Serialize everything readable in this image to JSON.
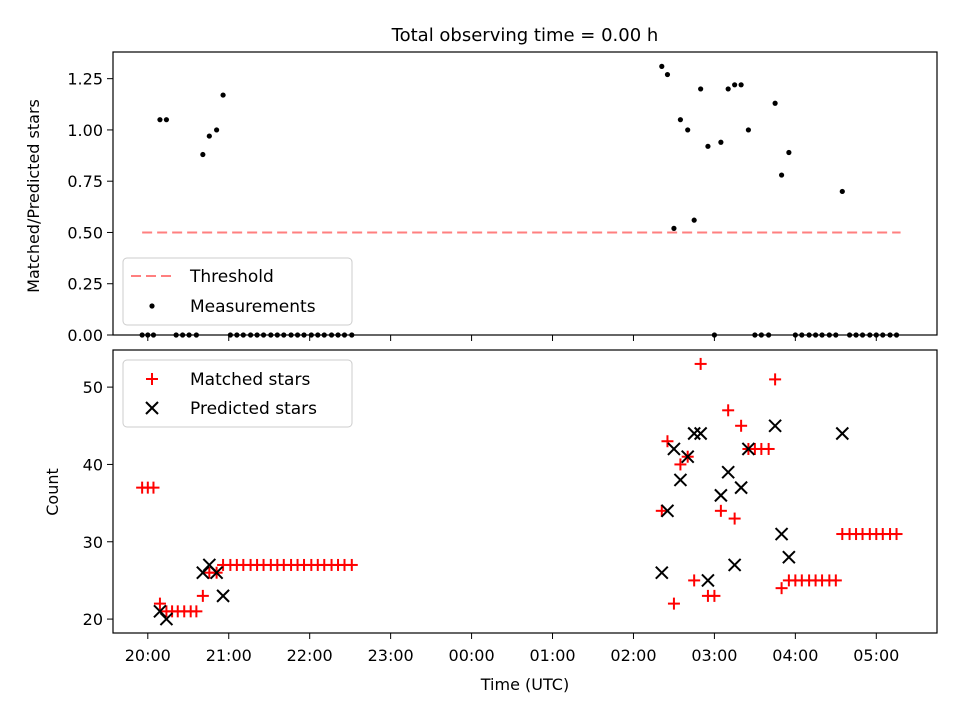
{
  "chart_data": [
    {
      "type": "scatter",
      "title": "Total observing time = 0.00 h",
      "ylabel": "Matched/Predicted stars",
      "xlabel": "",
      "ylim": [
        0,
        1.38
      ],
      "yticks": [
        "0.00",
        "0.25",
        "0.50",
        "0.75",
        "1.00",
        "1.25"
      ],
      "ytick_values": [
        0,
        0.25,
        0.5,
        0.75,
        1.0,
        1.25
      ],
      "legend_loc": "lower-left",
      "threshold": {
        "name": "Threshold",
        "value": 0.5,
        "color": "#ff7f7f",
        "x_range": [
          19.93,
          29.3
        ]
      },
      "series": [
        {
          "name": "Measurements",
          "color": "#000000",
          "points": [
            [
              19.93,
              0
            ],
            [
              20.0,
              0
            ],
            [
              20.07,
              0
            ],
            [
              20.15,
              1.05
            ],
            [
              20.23,
              1.05
            ],
            [
              20.35,
              0
            ],
            [
              20.43,
              0
            ],
            [
              20.51,
              0
            ],
            [
              20.6,
              0
            ],
            [
              20.68,
              0.88
            ],
            [
              20.76,
              0.97
            ],
            [
              20.85,
              1.0
            ],
            [
              20.93,
              1.17
            ],
            [
              21.02,
              0
            ],
            [
              21.1,
              0
            ],
            [
              21.18,
              0
            ],
            [
              21.27,
              0
            ],
            [
              21.35,
              0
            ],
            [
              21.43,
              0
            ],
            [
              21.52,
              0
            ],
            [
              21.6,
              0
            ],
            [
              21.68,
              0
            ],
            [
              21.77,
              0
            ],
            [
              21.85,
              0
            ],
            [
              21.93,
              0
            ],
            [
              22.02,
              0
            ],
            [
              22.1,
              0
            ],
            [
              22.18,
              0
            ],
            [
              22.27,
              0
            ],
            [
              22.35,
              0
            ],
            [
              22.43,
              0
            ],
            [
              22.52,
              0
            ],
            [
              26.35,
              1.31
            ],
            [
              26.42,
              1.27
            ],
            [
              26.5,
              0.52
            ],
            [
              26.58,
              1.05
            ],
            [
              26.67,
              1.0
            ],
            [
              26.75,
              0.56
            ],
            [
              26.83,
              1.2
            ],
            [
              26.92,
              0.92
            ],
            [
              27.0,
              0
            ],
            [
              27.08,
              0.94
            ],
            [
              27.17,
              1.2
            ],
            [
              27.25,
              1.22
            ],
            [
              27.33,
              1.22
            ],
            [
              27.42,
              1.0
            ],
            [
              27.5,
              0
            ],
            [
              27.58,
              0
            ],
            [
              27.67,
              0
            ],
            [
              27.75,
              1.13
            ],
            [
              27.83,
              0.78
            ],
            [
              27.92,
              0.89
            ],
            [
              28.0,
              0
            ],
            [
              28.08,
              0
            ],
            [
              28.17,
              0
            ],
            [
              28.25,
              0
            ],
            [
              28.33,
              0
            ],
            [
              28.42,
              0
            ],
            [
              28.5,
              0
            ],
            [
              28.58,
              0.7
            ],
            [
              28.67,
              0
            ],
            [
              28.75,
              0
            ],
            [
              28.83,
              0
            ],
            [
              28.92,
              0
            ],
            [
              29.0,
              0
            ],
            [
              29.08,
              0
            ],
            [
              29.17,
              0
            ],
            [
              29.25,
              0
            ]
          ]
        }
      ]
    },
    {
      "type": "scatter",
      "title": "",
      "ylabel": "Count",
      "xlabel": "Time (UTC)",
      "ylim": [
        18.2,
        54.8
      ],
      "yticks": [
        "20",
        "30",
        "40",
        "50"
      ],
      "ytick_values": [
        20,
        30,
        40,
        50
      ],
      "xlim": [
        19.57,
        29.75
      ],
      "xticks": [
        "20:00",
        "21:00",
        "22:00",
        "23:00",
        "00:00",
        "01:00",
        "02:00",
        "03:00",
        "04:00",
        "05:00"
      ],
      "xtick_values": [
        20,
        21,
        22,
        23,
        24,
        25,
        26,
        27,
        28,
        29
      ],
      "legend_loc": "upper-left",
      "series": [
        {
          "name": "Matched stars",
          "color": "#ff0000",
          "marker": "plus",
          "points": [
            [
              19.93,
              37
            ],
            [
              20.0,
              37
            ],
            [
              20.07,
              37
            ],
            [
              20.15,
              22
            ],
            [
              20.23,
              21
            ],
            [
              20.3,
              21
            ],
            [
              20.37,
              21
            ],
            [
              20.45,
              21
            ],
            [
              20.53,
              21
            ],
            [
              20.6,
              21
            ],
            [
              20.68,
              23
            ],
            [
              20.76,
              26
            ],
            [
              20.85,
              26
            ],
            [
              20.93,
              27
            ],
            [
              21.02,
              27
            ],
            [
              21.1,
              27
            ],
            [
              21.18,
              27
            ],
            [
              21.27,
              27
            ],
            [
              21.35,
              27
            ],
            [
              21.43,
              27
            ],
            [
              21.52,
              27
            ],
            [
              21.6,
              27
            ],
            [
              21.68,
              27
            ],
            [
              21.77,
              27
            ],
            [
              21.85,
              27
            ],
            [
              21.93,
              27
            ],
            [
              22.02,
              27
            ],
            [
              22.1,
              27
            ],
            [
              22.18,
              27
            ],
            [
              22.27,
              27
            ],
            [
              22.35,
              27
            ],
            [
              22.43,
              27
            ],
            [
              22.52,
              27
            ],
            [
              26.35,
              34
            ],
            [
              26.42,
              43
            ],
            [
              26.5,
              22
            ],
            [
              26.58,
              40
            ],
            [
              26.67,
              41
            ],
            [
              26.75,
              25
            ],
            [
              26.83,
              53
            ],
            [
              26.92,
              23
            ],
            [
              27.0,
              23
            ],
            [
              27.08,
              34
            ],
            [
              27.17,
              47
            ],
            [
              27.25,
              33
            ],
            [
              27.33,
              45
            ],
            [
              27.42,
              42
            ],
            [
              27.5,
              42
            ],
            [
              27.58,
              42
            ],
            [
              27.67,
              42
            ],
            [
              27.75,
              51
            ],
            [
              27.83,
              24
            ],
            [
              27.92,
              25
            ],
            [
              28.0,
              25
            ],
            [
              28.08,
              25
            ],
            [
              28.17,
              25
            ],
            [
              28.25,
              25
            ],
            [
              28.33,
              25
            ],
            [
              28.42,
              25
            ],
            [
              28.5,
              25
            ],
            [
              28.58,
              31
            ],
            [
              28.67,
              31
            ],
            [
              28.75,
              31
            ],
            [
              28.83,
              31
            ],
            [
              28.92,
              31
            ],
            [
              29.0,
              31
            ],
            [
              29.08,
              31
            ],
            [
              29.17,
              31
            ],
            [
              29.25,
              31
            ]
          ]
        },
        {
          "name": "Predicted stars",
          "color": "#000000",
          "marker": "x",
          "points": [
            [
              20.15,
              21
            ],
            [
              20.23,
              20
            ],
            [
              20.68,
              26
            ],
            [
              20.76,
              27
            ],
            [
              20.85,
              26
            ],
            [
              20.93,
              23
            ],
            [
              26.35,
              26
            ],
            [
              26.42,
              34
            ],
            [
              26.5,
              42
            ],
            [
              26.58,
              38
            ],
            [
              26.67,
              41
            ],
            [
              26.75,
              44
            ],
            [
              26.83,
              44
            ],
            [
              26.92,
              25
            ],
            [
              27.08,
              36
            ],
            [
              27.17,
              39
            ],
            [
              27.25,
              27
            ],
            [
              27.33,
              37
            ],
            [
              27.42,
              42
            ],
            [
              27.75,
              45
            ],
            [
              27.83,
              31
            ],
            [
              27.92,
              28
            ],
            [
              28.58,
              44
            ]
          ]
        }
      ]
    }
  ]
}
